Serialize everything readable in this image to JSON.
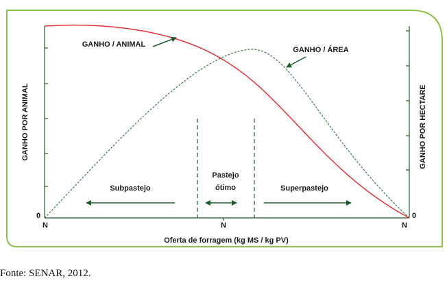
{
  "curves": {
    "gain_per_animal": "GANHO / ANIMAL",
    "gain_per_area": "GANHO / ÁREA"
  },
  "axes": {
    "left_label": "GANHO POR ANIMAL",
    "right_label": "GANHO POR HECTARE",
    "left_zero": "0",
    "right_zero": "0",
    "x_marks": [
      "N",
      "N",
      "N"
    ],
    "x_label": "Oferta de forragem (kg MS / kg PV)"
  },
  "zones": {
    "under": "Subpastejo",
    "optimal": [
      "Pastejo",
      "ótimo"
    ],
    "over": "Superpastejo"
  },
  "source": "Fonte: SENAR, 2012."
}
